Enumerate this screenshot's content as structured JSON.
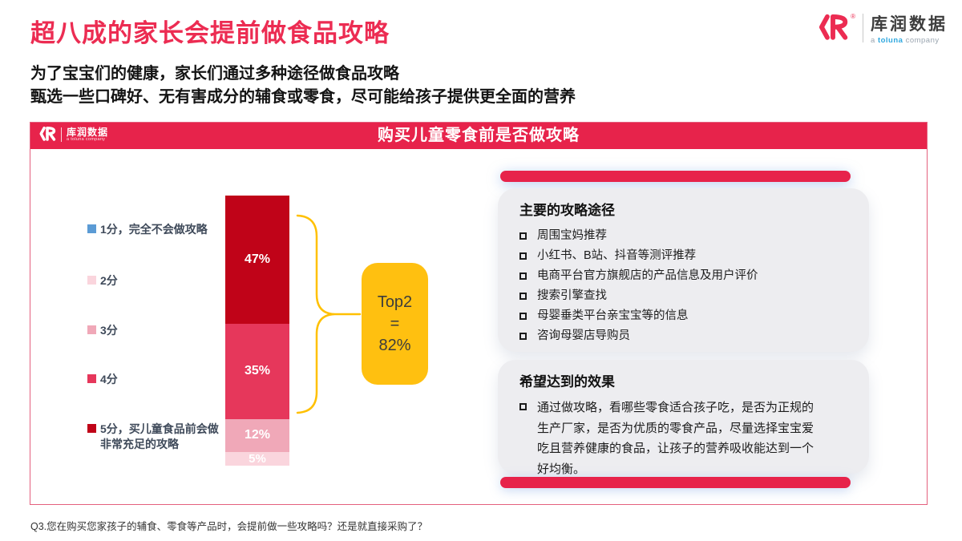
{
  "page": {
    "title": "超八成的家长会提前做食品攻略",
    "subtitle_line1": "为了宝宝们的健康，家长们通过多种途径做食品攻略",
    "subtitle_line2": "甄选一些口碑好、无有害成分的辅食或零食，尽可能给孩子提供更全面的营养",
    "footnote": "Q3.您在购买您家孩子的辅食、零食等产品时，会提前做一些攻略吗？还是就直接采购了？"
  },
  "brand": {
    "name": "库润数据",
    "tagline_a": "a",
    "tagline_toluna": "toluna",
    "tagline_company": "company",
    "registered": "®"
  },
  "card": {
    "header_title": "购买儿童零食前是否做攻略"
  },
  "chart_data": {
    "type": "bar",
    "stacked": true,
    "title": "购买儿童零食前是否做攻略",
    "unit": "%",
    "legend_position": "left",
    "legend": [
      {
        "label": "1分，完全不会做攻略",
        "color": "#5B9BD5",
        "value": null
      },
      {
        "label": "2分",
        "color": "#FAD5DD",
        "value": 5
      },
      {
        "label": "3分",
        "color": "#F0A8B8",
        "value": 12
      },
      {
        "label": "4分",
        "color": "#E6375B",
        "value": 35
      },
      {
        "label": "5分，买儿童食品前会做非常充足的攻略",
        "color": "#C00318",
        "value": 47
      }
    ],
    "segments": [
      {
        "score": "5分",
        "value": 47,
        "display": "47%",
        "color": "#C00318"
      },
      {
        "score": "4分",
        "value": 35,
        "display": "35%",
        "color": "#E6375B"
      },
      {
        "score": "3分",
        "value": 12,
        "display": "12%",
        "color": "#F0A8B8"
      },
      {
        "score": "2分",
        "value": 5,
        "display": "5%",
        "color": "#FAD5DD"
      }
    ],
    "annotation": {
      "line1": "Top2",
      "line2": "=",
      "line3": "82%"
    }
  },
  "panels": {
    "channels": {
      "heading": "主要的攻略途径",
      "items": [
        "周围宝妈推荐",
        "小红书、B站、抖音等测评推荐",
        "电商平台官方旗舰店的产品信息及用户评价",
        "搜索引擎查找",
        "母婴垂类平台亲宝宝等的信息",
        "咨询母婴店导购员"
      ]
    },
    "effects": {
      "heading": "希望达到的效果",
      "items": [
        "通过做攻略，看哪些零食适合孩子吃，是否为正规的生产厂家，是否为优质的零食产品，尽量选择宝宝爱吃且营养健康的食品，让孩子的营养吸收能达到一个好均衡。"
      ]
    }
  },
  "colors": {
    "accent_red": "#E7234B",
    "title_red": "#EC2C52",
    "annotation_yellow": "#FFC010",
    "brace_yellow": "#FFC000",
    "panel_gray": "#EDEDF0",
    "toluna_blue": "#2FA8DF"
  }
}
